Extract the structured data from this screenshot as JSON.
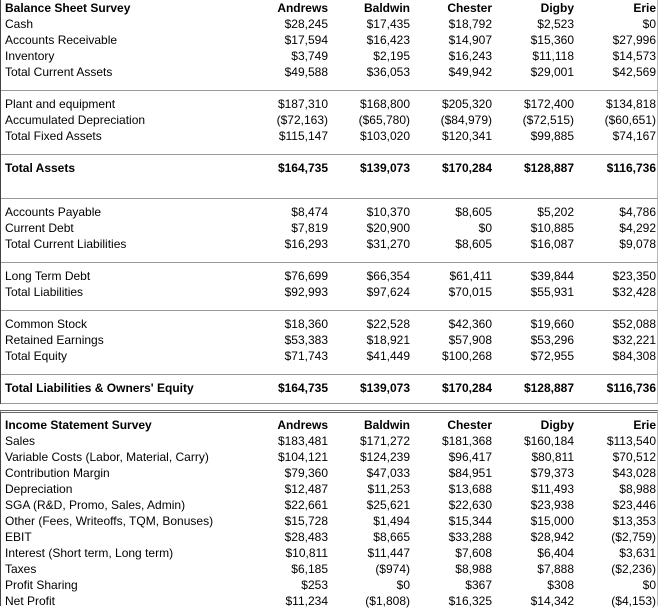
{
  "balance": {
    "title": "Balance Sheet Survey",
    "columns": [
      "Andrews",
      "Baldwin",
      "Chester",
      "Digby",
      "Erie"
    ],
    "groups": [
      [
        {
          "label": "Cash",
          "values": [
            "$28,245",
            "$17,435",
            "$18,792",
            "$2,523",
            "$0"
          ]
        },
        {
          "label": "Accounts Receivable",
          "values": [
            "$17,594",
            "$16,423",
            "$14,907",
            "$15,360",
            "$27,996"
          ]
        },
        {
          "label": "Inventory",
          "values": [
            "$3,749",
            "$2,195",
            "$16,243",
            "$11,118",
            "$14,573"
          ]
        },
        {
          "label": "Total Current Assets",
          "values": [
            "$49,588",
            "$36,053",
            "$49,942",
            "$29,001",
            "$42,569"
          ]
        }
      ],
      [
        {
          "label": "Plant and equipment",
          "values": [
            "$187,310",
            "$168,800",
            "$205,320",
            "$172,400",
            "$134,818"
          ]
        },
        {
          "label": "Accumulated Depreciation",
          "values": [
            "($72,163)",
            "($65,780)",
            "($84,979)",
            "($72,515)",
            "($60,651)"
          ]
        },
        {
          "label": "Total Fixed Assets",
          "values": [
            "$115,147",
            "$103,020",
            "$120,341",
            "$99,885",
            "$74,167"
          ]
        }
      ],
      [
        {
          "label": "Total Assets",
          "values": [
            "$164,735",
            "$139,073",
            "$170,284",
            "$128,887",
            "$116,736"
          ]
        }
      ],
      [
        {
          "label": "Accounts Payable",
          "values": [
            "$8,474",
            "$10,370",
            "$8,605",
            "$5,202",
            "$4,786"
          ]
        },
        {
          "label": "Current Debt",
          "values": [
            "$7,819",
            "$20,900",
            "$0",
            "$10,885",
            "$4,292"
          ]
        },
        {
          "label": "Total Current Liabilities",
          "values": [
            "$16,293",
            "$31,270",
            "$8,605",
            "$16,087",
            "$9,078"
          ]
        }
      ],
      [
        {
          "label": "Long Term Debt",
          "values": [
            "$76,699",
            "$66,354",
            "$61,411",
            "$39,844",
            "$23,350"
          ]
        },
        {
          "label": "Total Liabilities",
          "values": [
            "$92,993",
            "$97,624",
            "$70,015",
            "$55,931",
            "$32,428"
          ]
        }
      ],
      [
        {
          "label": "Common Stock",
          "values": [
            "$18,360",
            "$22,528",
            "$42,360",
            "$19,660",
            "$52,088"
          ]
        },
        {
          "label": "Retained Earnings",
          "values": [
            "$53,383",
            "$18,921",
            "$57,908",
            "$53,296",
            "$32,221"
          ]
        },
        {
          "label": "Total Equity",
          "values": [
            "$71,743",
            "$41,449",
            "$100,268",
            "$72,955",
            "$84,308"
          ]
        }
      ],
      [
        {
          "label": "Total Liabilities & Owners' Equity",
          "values": [
            "$164,735",
            "$139,073",
            "$170,284",
            "$128,887",
            "$116,736"
          ]
        }
      ]
    ]
  },
  "income": {
    "title": "Income Statement Survey",
    "columns": [
      "Andrews",
      "Baldwin",
      "Chester",
      "Digby",
      "Erie"
    ],
    "rows": [
      {
        "label": "Sales",
        "values": [
          "$183,481",
          "$171,272",
          "$181,368",
          "$160,184",
          "$113,540"
        ]
      },
      {
        "label": "Variable Costs (Labor, Material, Carry)",
        "values": [
          "$104,121",
          "$124,239",
          "$96,417",
          "$80,811",
          "$70,512"
        ]
      },
      {
        "label": "Contribution Margin",
        "values": [
          "$79,360",
          "$47,033",
          "$84,951",
          "$79,373",
          "$43,028"
        ]
      },
      {
        "label": "Depreciation",
        "values": [
          "$12,487",
          "$11,253",
          "$13,688",
          "$11,493",
          "$8,988"
        ]
      },
      {
        "label": "SGA (R&D, Promo, Sales, Admin)",
        "values": [
          "$22,661",
          "$25,621",
          "$22,630",
          "$23,938",
          "$23,446"
        ]
      },
      {
        "label": "Other (Fees, Writeoffs, TQM, Bonuses)",
        "values": [
          "$15,728",
          "$1,494",
          "$15,344",
          "$15,000",
          "$13,353"
        ]
      },
      {
        "label": "EBIT",
        "values": [
          "$28,483",
          "$8,665",
          "$33,288",
          "$28,942",
          "($2,759)"
        ]
      },
      {
        "label": "Interest (Short term, Long term)",
        "values": [
          "$10,811",
          "$11,447",
          "$7,608",
          "$6,404",
          "$3,631"
        ]
      },
      {
        "label": "Taxes",
        "values": [
          "$6,185",
          "($974)",
          "$8,988",
          "$7,888",
          "($2,236)"
        ]
      },
      {
        "label": "Profit Sharing",
        "values": [
          "$253",
          "$0",
          "$367",
          "$308",
          "$0"
        ]
      },
      {
        "label": "Net Profit",
        "values": [
          "$11,234",
          "($1,808)",
          "$16,325",
          "$14,342",
          "($4,153)"
        ]
      }
    ]
  }
}
